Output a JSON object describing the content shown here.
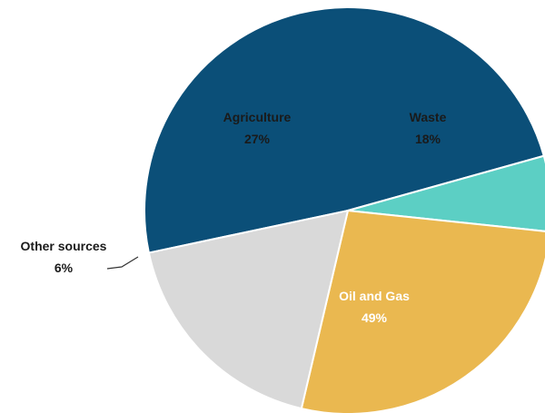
{
  "chart_data": {
    "type": "pie",
    "slices": [
      {
        "label": "Oil and Gas",
        "value": 49,
        "value_label": "49%",
        "color": "#0b4f78",
        "text_color": "#ffffff"
      },
      {
        "label": "Other sources",
        "value": 6,
        "value_label": "6%",
        "color": "#5ccfc4",
        "text_color": "#1a1a1a"
      },
      {
        "label": "Agriculture",
        "value": 27,
        "value_label": "27%",
        "color": "#eab850",
        "text_color": "#1a1a1a"
      },
      {
        "label": "Waste",
        "value": 18,
        "value_label": "18%",
        "color": "#d9d9d9",
        "text_color": "#1a1a1a"
      }
    ],
    "slice_border_color": "#ffffff",
    "leader_line_color": "#333333"
  }
}
